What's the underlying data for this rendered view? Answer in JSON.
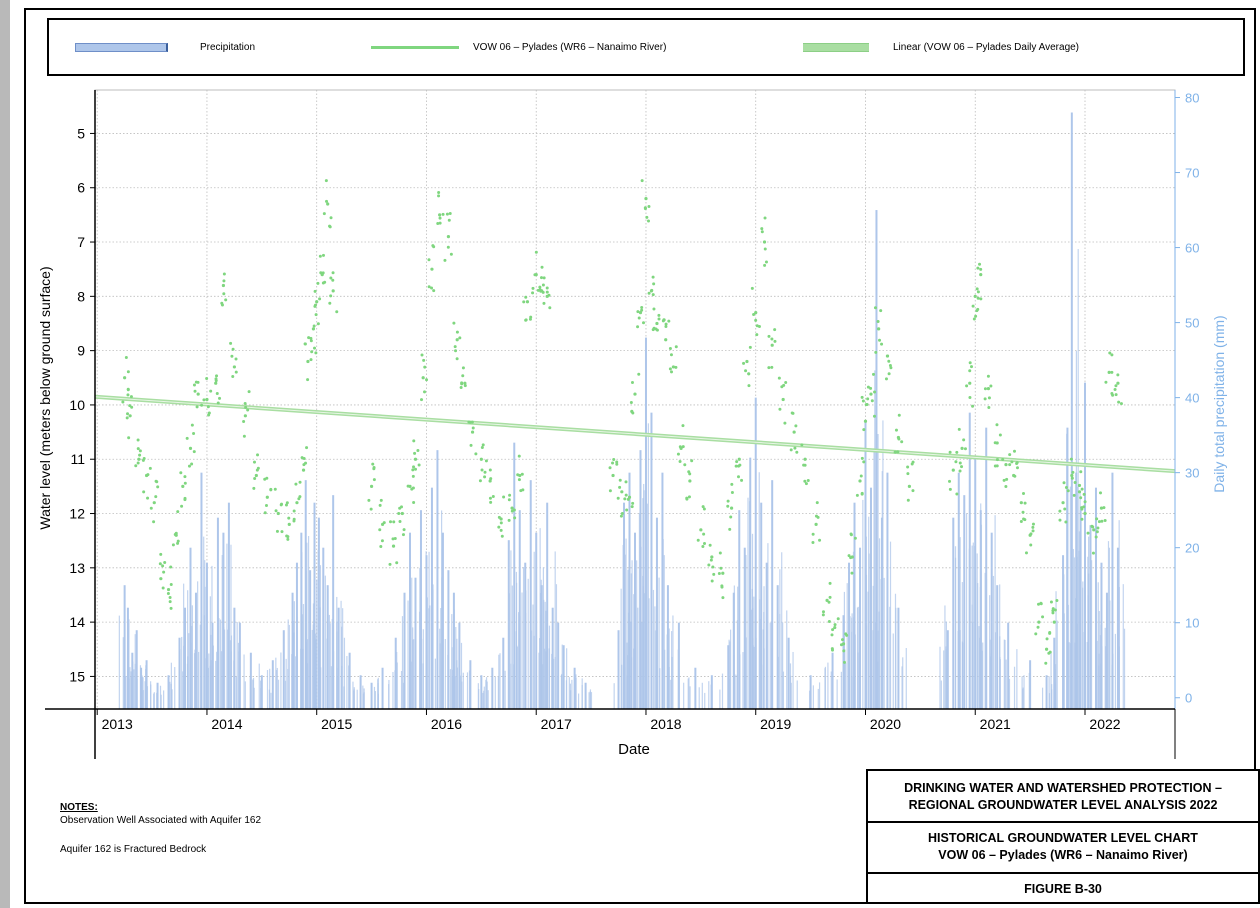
{
  "legend": {
    "precipitation_label": "Precipitation",
    "well_label": "VOW 06 – Pylades (WR6 – Nanaimo River)",
    "linear_label": "Linear (VOW 06 – Pylades Daily Average)"
  },
  "colors": {
    "precipitation": "#aec6ea",
    "well": "#7fd67f",
    "linear": "#a9dea2",
    "right_axis": "#7fb2e8",
    "grid": "#bdbdbd"
  },
  "chart_data": {
    "type": "scatter",
    "xlabel": "Date",
    "ylabel_left": "Water level (meters below ground surface)",
    "ylabel_right": "Daily total precipitation (mm)",
    "x_ticks": [
      "2013",
      "2014",
      "2015",
      "2016",
      "2017",
      "2018",
      "2019",
      "2020",
      "2021",
      "2022"
    ],
    "xlim": [
      2012.98,
      2022.82
    ],
    "y_left_ticks": [
      5,
      6,
      7,
      8,
      9,
      10,
      11,
      12,
      13,
      14,
      15
    ],
    "y_left_lim": [
      4.2,
      15.6
    ],
    "y_left_inverted": true,
    "y_right_ticks": [
      0,
      10,
      20,
      30,
      40,
      50,
      60,
      70,
      80
    ],
    "y_right_lim": [
      -1.5,
      81
    ],
    "grid": true,
    "legend_position": "top",
    "series": [
      {
        "name": "VOW 06 – Pylades (WR6 – Nanaimo River)",
        "kind": "water_level_points",
        "x": [
          2013.25,
          2013.3,
          2013.38,
          2013.45,
          2013.52,
          2013.58,
          2013.65,
          2013.72,
          2013.78,
          2013.85,
          2013.92,
          2014.0,
          2014.08,
          2014.15,
          2014.25,
          2014.35,
          2014.45,
          2014.55,
          2014.65,
          2014.75,
          2014.82,
          2014.88,
          2014.92,
          2014.97,
          2015.0,
          2015.05,
          2015.1,
          2015.15,
          2015.5,
          2015.6,
          2015.7,
          2015.78,
          2015.85,
          2015.9,
          2015.97,
          2016.05,
          2016.12,
          2016.2,
          2016.28,
          2016.35,
          2016.42,
          2016.5,
          2016.58,
          2016.68,
          2016.78,
          2016.85,
          2016.92,
          2017.0,
          2017.05,
          2017.1,
          2017.7,
          2017.78,
          2017.85,
          2017.9,
          2017.95,
          2018.0,
          2018.05,
          2018.1,
          2018.18,
          2018.25,
          2018.32,
          2018.4,
          2018.5,
          2018.6,
          2018.7,
          2018.78,
          2018.85,
          2018.92,
          2019.0,
          2019.08,
          2019.15,
          2019.25,
          2019.35,
          2019.45,
          2019.55,
          2019.65,
          2019.72,
          2019.8,
          2019.88,
          2019.95,
          2020.0,
          2020.05,
          2020.12,
          2020.2,
          2020.3,
          2020.4,
          2020.8,
          2020.88,
          2020.95,
          2021.0,
          2021.05,
          2021.12,
          2021.2,
          2021.28,
          2021.35,
          2021.42,
          2021.5,
          2021.58,
          2021.65,
          2021.72,
          2021.8,
          2021.88,
          2021.95,
          2022.0,
          2022.08,
          2022.15,
          2022.22,
          2022.3
        ],
        "y": [
          9.5,
          10.2,
          11.0,
          11.3,
          11.8,
          13.2,
          13.4,
          12.4,
          11.5,
          10.8,
          9.8,
          9.9,
          9.6,
          7.8,
          9.3,
          10.2,
          11.3,
          11.7,
          12.0,
          12.2,
          11.8,
          11.2,
          9.2,
          8.6,
          8.1,
          7.6,
          6.3,
          7.9,
          11.5,
          12.2,
          12.6,
          12.0,
          11.5,
          11.0,
          9.5,
          7.5,
          6.5,
          6.9,
          8.8,
          9.6,
          10.5,
          11.0,
          11.4,
          12.1,
          11.9,
          11.3,
          8.1,
          7.6,
          7.9,
          8.0,
          11.3,
          11.6,
          11.7,
          9.8,
          8.3,
          6.2,
          7.9,
          8.5,
          8.8,
          9.3,
          10.8,
          11.4,
          12.3,
          12.8,
          13.1,
          11.9,
          11.0,
          9.2,
          8.3,
          7.0,
          8.9,
          9.9,
          10.5,
          11.0,
          12.2,
          13.6,
          14.1,
          14.4,
          12.8,
          11.4,
          10.3,
          9.8,
          8.6,
          9.1,
          10.6,
          11.5,
          11.2,
          10.8,
          9.6,
          8.0,
          7.6,
          9.7,
          10.7,
          11.1,
          11.3,
          11.8,
          12.4,
          14.0,
          14.5,
          14.0,
          11.8,
          11.3,
          11.6,
          12.0,
          12.3,
          11.9,
          9.4,
          9.6
        ]
      },
      {
        "name": "Linear (VOW 06 – Pylades Daily Average)",
        "kind": "linear_trend",
        "x": [
          2012.98,
          2022.82
        ],
        "y": [
          9.85,
          11.22
        ]
      },
      {
        "name": "Precipitation",
        "kind": "precipitation_bars",
        "x": [
          2013.25,
          2013.28,
          2013.32,
          2013.36,
          2013.4,
          2013.45,
          2013.55,
          2013.65,
          2013.75,
          2013.8,
          2013.85,
          2013.9,
          2013.95,
          2014.0,
          2014.05,
          2014.1,
          2014.15,
          2014.2,
          2014.25,
          2014.3,
          2014.4,
          2014.5,
          2014.6,
          2014.7,
          2014.78,
          2014.82,
          2014.86,
          2014.9,
          2014.94,
          2014.98,
          2015.02,
          2015.06,
          2015.1,
          2015.15,
          2015.2,
          2015.3,
          2015.4,
          2015.5,
          2015.6,
          2015.72,
          2015.8,
          2015.85,
          2015.9,
          2015.95,
          2016.0,
          2016.05,
          2016.1,
          2016.15,
          2016.2,
          2016.25,
          2016.3,
          2016.4,
          2016.5,
          2016.6,
          2016.7,
          2016.75,
          2016.8,
          2016.85,
          2016.9,
          2016.95,
          2017.0,
          2017.05,
          2017.1,
          2017.15,
          2017.2,
          2017.25,
          2017.35,
          2017.45,
          2017.75,
          2017.8,
          2017.85,
          2017.9,
          2017.95,
          2018.0,
          2018.05,
          2018.1,
          2018.15,
          2018.2,
          2018.3,
          2018.45,
          2018.6,
          2018.75,
          2018.8,
          2018.85,
          2018.9,
          2018.95,
          2019.0,
          2019.05,
          2019.1,
          2019.15,
          2019.2,
          2019.3,
          2019.5,
          2019.7,
          2019.8,
          2019.85,
          2019.9,
          2019.95,
          2020.0,
          2020.05,
          2020.1,
          2020.15,
          2020.2,
          2020.3,
          2020.75,
          2020.8,
          2020.85,
          2020.9,
          2020.95,
          2021.0,
          2021.05,
          2021.1,
          2021.15,
          2021.2,
          2021.3,
          2021.5,
          2021.65,
          2021.72,
          2021.8,
          2021.84,
          2021.88,
          2021.92,
          2021.96,
          2022.0,
          2022.05,
          2022.1,
          2022.15,
          2022.2,
          2022.25,
          2022.3
        ],
        "values": [
          15,
          12,
          6,
          9,
          4,
          5,
          2,
          3,
          8,
          12,
          20,
          14,
          30,
          18,
          10,
          24,
          22,
          26,
          12,
          10,
          6,
          3,
          5,
          9,
          14,
          18,
          22,
          29,
          17,
          26,
          24,
          20,
          15,
          27,
          12,
          6,
          3,
          2,
          4,
          8,
          14,
          22,
          16,
          25,
          19,
          28,
          33,
          22,
          17,
          14,
          10,
          5,
          3,
          4,
          8,
          21,
          34,
          25,
          18,
          29,
          22,
          15,
          26,
          12,
          10,
          7,
          4,
          2,
          9,
          26,
          30,
          22,
          33,
          48,
          38,
          24,
          30,
          15,
          10,
          4,
          3,
          7,
          14,
          25,
          20,
          32,
          40,
          26,
          18,
          29,
          15,
          8,
          3,
          6,
          11,
          18,
          26,
          20,
          37,
          28,
          65,
          24,
          30,
          12,
          9,
          24,
          30,
          27,
          38,
          32,
          25,
          36,
          22,
          15,
          10,
          5,
          3,
          8,
          19,
          36,
          78,
          30,
          25,
          42,
          23,
          28,
          18,
          14,
          30,
          20
        ]
      }
    ]
  },
  "notes": {
    "title": "NOTES:",
    "line1": "Observation Well Associated with Aquifer 162",
    "line2": "Aquifer 162 is Fractured Bedrock"
  },
  "title_block": {
    "line1": "DRINKING WATER AND WATERSHED PROTECTION –",
    "line2": "REGIONAL GROUNDWATER LEVEL ANALYSIS 2022",
    "line3": "HISTORICAL GROUNDWATER LEVEL CHART",
    "line4": "VOW 06 – Pylades (WR6 – Nanaimo River)",
    "line5": "FIGURE B-30"
  }
}
